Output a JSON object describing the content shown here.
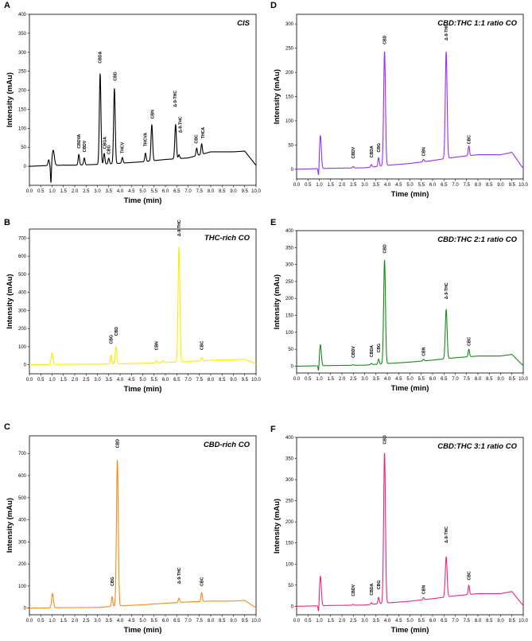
{
  "chart_data": [
    {
      "panel": "A",
      "title": "CIS",
      "type": "line",
      "color": "#000000",
      "xlabel": "Time (min)",
      "ylabel": "Intensity (mAu)",
      "xlim": [
        0,
        10
      ],
      "ylim": [
        -50,
        400
      ],
      "xticks": [
        "0.0",
        "0.5",
        "1.0",
        "1.5",
        "2.0",
        "2.5",
        "3.0",
        "3.5",
        "4.0",
        "4.5",
        "5.0",
        "5.5",
        "6.0",
        "6.5",
        "7.0",
        "7.5",
        "8.0",
        "8.5",
        "9.0",
        "9.5",
        "10.0"
      ],
      "yticks": [
        "0",
        "50",
        "100",
        "150",
        "200",
        "250",
        "300",
        "350",
        "400"
      ],
      "baseline": [
        [
          0,
          0
        ],
        [
          0.8,
          2
        ],
        [
          1.5,
          3
        ],
        [
          2,
          3
        ],
        [
          3,
          5
        ],
        [
          4,
          8
        ],
        [
          5,
          12
        ],
        [
          6,
          18
        ],
        [
          7,
          22
        ],
        [
          8,
          38
        ],
        [
          8.5,
          38
        ],
        [
          9,
          38
        ],
        [
          9.5,
          40
        ],
        [
          9.9,
          10
        ],
        [
          10,
          2
        ]
      ],
      "peaks": [
        {
          "label": "",
          "x": 0.85,
          "h": 15,
          "w": 0.03
        },
        {
          "label": "",
          "x": 0.95,
          "h": -50,
          "w": 0.02
        },
        {
          "label": "",
          "x": 1.05,
          "h": 40,
          "w": 0.05
        },
        {
          "label": "CBDVA",
          "x": 2.18,
          "h": 28,
          "w": 0.03
        },
        {
          "label": "CBDV",
          "x": 2.42,
          "h": 18,
          "w": 0.03
        },
        {
          "label": "CBDA",
          "x": 3.12,
          "h": 238,
          "w": 0.035
        },
        {
          "label": "CBGA",
          "x": 3.3,
          "h": 28,
          "w": 0.03
        },
        {
          "label": "CBG",
          "x": 3.5,
          "h": 15,
          "w": 0.03
        },
        {
          "label": "CBD",
          "x": 3.75,
          "h": 197,
          "w": 0.035
        },
        {
          "label": "THCV",
          "x": 4.1,
          "h": 15,
          "w": 0.03
        },
        {
          "label": "THCVA",
          "x": 5.12,
          "h": 22,
          "w": 0.03
        },
        {
          "label": "CBN",
          "x": 5.4,
          "h": 95,
          "w": 0.035
        },
        {
          "label": "Δ-9-THC",
          "x": 6.45,
          "h": 90,
          "w": 0.035
        },
        {
          "label": "Δ-8-THC",
          "x": 6.6,
          "h": 10,
          "w": 0.03
        },
        {
          "label": "CBC",
          "x": 7.38,
          "h": 20,
          "w": 0.03
        },
        {
          "label": "THCA",
          "x": 7.6,
          "h": 28,
          "w": 0.03
        }
      ],
      "labels": [
        {
          "label": "CBDVA",
          "x": 2.18,
          "y": 47
        },
        {
          "label": "CBDV",
          "x": 2.42,
          "y": 37
        },
        {
          "label": "CBDA",
          "x": 3.12,
          "y": 271
        },
        {
          "label": "CBGA",
          "x": 3.32,
          "y": 46
        },
        {
          "label": "CBG",
          "x": 3.5,
          "y": 32
        },
        {
          "label": "CBD",
          "x": 3.77,
          "y": 225
        },
        {
          "label": "THCV",
          "x": 4.1,
          "y": 34
        },
        {
          "label": "THCVA",
          "x": 5.12,
          "y": 52
        },
        {
          "label": "CBN",
          "x": 5.42,
          "y": 125
        },
        {
          "label": "Δ-9-THC",
          "x": 6.42,
          "y": 156
        },
        {
          "label": "Δ-8-THC",
          "x": 6.65,
          "y": 88
        },
        {
          "label": "CBC",
          "x": 7.35,
          "y": 60
        },
        {
          "label": "THCA",
          "x": 7.65,
          "y": 73
        }
      ]
    },
    {
      "panel": "B",
      "title": "THC-rich CO",
      "type": "line",
      "color": "#ffea00",
      "xlabel": "Time (min)",
      "ylabel": "Intensity (mAu)",
      "xlim": [
        0,
        10
      ],
      "ylim": [
        -50,
        750
      ],
      "xticks": [
        "0.0",
        "0.5",
        "1.0",
        "1.5",
        "2.0",
        "2.5",
        "3.0",
        "3.5",
        "4.0",
        "4.5",
        "5.0",
        "5.5",
        "6.0",
        "6.5",
        "7.0",
        "7.5",
        "8.0",
        "8.5",
        "9.0",
        "9.5",
        "10.0"
      ],
      "yticks": [
        "0",
        "100",
        "200",
        "300",
        "400",
        "500",
        "600",
        "700"
      ],
      "baseline": [
        [
          0,
          0
        ],
        [
          1.5,
          2
        ],
        [
          3,
          3
        ],
        [
          4,
          5
        ],
        [
          5,
          8
        ],
        [
          6,
          12
        ],
        [
          7,
          18
        ],
        [
          8,
          25
        ],
        [
          9,
          28
        ],
        [
          9.5,
          30
        ],
        [
          9.9,
          10
        ],
        [
          10,
          3
        ]
      ],
      "peaks": [
        {
          "label": "",
          "x": 1.0,
          "h": 65,
          "w": 0.04
        },
        {
          "label": "CBG",
          "x": 3.6,
          "h": 50,
          "w": 0.03
        },
        {
          "label": "CBD",
          "x": 3.82,
          "h": 95,
          "w": 0.035
        },
        {
          "label": "CBN",
          "x": 5.6,
          "h": 12,
          "w": 0.03
        },
        {
          "label": "",
          "x": 5.9,
          "h": 10,
          "w": 0.04
        },
        {
          "label": "Δ-9-THC",
          "x": 6.6,
          "h": 635,
          "w": 0.04
        },
        {
          "label": "CBC",
          "x": 7.6,
          "h": 18,
          "w": 0.03
        }
      ],
      "labels": [
        {
          "label": "CBG",
          "x": 3.6,
          "y": 115
        },
        {
          "label": "CBD",
          "x": 3.84,
          "y": 160
        },
        {
          "label": "CBN",
          "x": 5.6,
          "y": 80
        },
        {
          "label": "Δ-9-THC",
          "x": 6.6,
          "y": 710
        },
        {
          "label": "CBC",
          "x": 7.6,
          "y": 82
        }
      ]
    },
    {
      "panel": "C",
      "title": "CBD-rich CO",
      "type": "line",
      "color": "#f28c1a",
      "xlabel": "Time (min)",
      "ylabel": "Intensity (mAu)",
      "xlim": [
        0,
        10
      ],
      "ylim": [
        -30,
        780
      ],
      "xticks": [
        "0.0",
        "0.5",
        "1.0",
        "1.5",
        "2.0",
        "2.5",
        "3.0",
        "3.5",
        "4.0",
        "4.5",
        "5.0",
        "5.5",
        "6.0",
        "6.5",
        "7.0",
        "7.5",
        "8.0",
        "8.5",
        "9.0",
        "9.5",
        "10.0"
      ],
      "yticks": [
        "0",
        "100",
        "200",
        "300",
        "400",
        "500",
        "600",
        "700"
      ],
      "baseline": [
        [
          0,
          0
        ],
        [
          1.5,
          2
        ],
        [
          3,
          3
        ],
        [
          4,
          10
        ],
        [
          5,
          15
        ],
        [
          6,
          22
        ],
        [
          7,
          28
        ],
        [
          8,
          32
        ],
        [
          9,
          32
        ],
        [
          9.5,
          35
        ],
        [
          9.9,
          8
        ],
        [
          10,
          2
        ]
      ],
      "peaks": [
        {
          "label": "",
          "x": 1.02,
          "h": 65,
          "w": 0.04
        },
        {
          "label": "CBG",
          "x": 3.65,
          "h": 45,
          "w": 0.03
        },
        {
          "label": "CBD",
          "x": 3.88,
          "h": 660,
          "w": 0.04
        },
        {
          "label": "Δ-9-THC",
          "x": 6.6,
          "h": 20,
          "w": 0.03
        },
        {
          "label": "CBC",
          "x": 7.6,
          "h": 40,
          "w": 0.03
        }
      ],
      "labels": [
        {
          "label": "CBG",
          "x": 3.65,
          "y": 100
        },
        {
          "label": "CBD",
          "x": 3.88,
          "y": 725
        },
        {
          "label": "Δ-9-THC",
          "x": 6.6,
          "y": 110
        },
        {
          "label": "CBC",
          "x": 7.6,
          "y": 100
        }
      ]
    },
    {
      "panel": "D",
      "title": "CBD:THC 1:1 ratio CO",
      "type": "line",
      "color": "#9b30e8",
      "xlabel": "Time (min)",
      "ylabel": "Intensity (mAu)",
      "xlim": [
        0,
        10
      ],
      "ylim": [
        -20,
        320
      ],
      "xticks": [
        "0.0",
        "0.5",
        "1.0",
        "1.5",
        "2.0",
        "2.5",
        "3.0",
        "3.5",
        "4.0",
        "4.5",
        "5.0",
        "5.5",
        "6.0",
        "6.5",
        "7.0",
        "7.5",
        "8.0",
        "8.5",
        "9.0",
        "9.5",
        "10.0"
      ],
      "yticks": [
        "0",
        "50",
        "100",
        "150",
        "200",
        "250",
        "300"
      ],
      "baseline": [
        [
          0,
          0
        ],
        [
          1.5,
          2
        ],
        [
          3,
          3
        ],
        [
          4,
          8
        ],
        [
          5,
          12
        ],
        [
          6,
          18
        ],
        [
          7,
          25
        ],
        [
          8,
          30
        ],
        [
          9,
          30
        ],
        [
          9.5,
          35
        ],
        [
          9.9,
          8
        ],
        [
          10,
          2
        ]
      ],
      "peaks": [
        {
          "label": "",
          "x": 0.97,
          "h": -20,
          "w": 0.02
        },
        {
          "label": "",
          "x": 1.05,
          "h": 68,
          "w": 0.04
        },
        {
          "label": "CBDV",
          "x": 2.5,
          "h": 3,
          "w": 0.03
        },
        {
          "label": "CBDA",
          "x": 3.3,
          "h": 5,
          "w": 0.03
        },
        {
          "label": "CBG",
          "x": 3.62,
          "h": 18,
          "w": 0.03
        },
        {
          "label": "CBD",
          "x": 3.88,
          "h": 235,
          "w": 0.04
        },
        {
          "label": "CBN",
          "x": 5.6,
          "h": 5,
          "w": 0.03
        },
        {
          "label": "Δ-9-THC",
          "x": 6.6,
          "h": 220,
          "w": 0.04
        },
        {
          "label": "CBC",
          "x": 7.6,
          "h": 20,
          "w": 0.03
        }
      ],
      "labels": [
        {
          "label": "CBDV",
          "x": 2.5,
          "y": 22
        },
        {
          "label": "CBDA",
          "x": 3.3,
          "y": 24
        },
        {
          "label": "CBG",
          "x": 3.62,
          "y": 35
        },
        {
          "label": "CBD",
          "x": 3.88,
          "y": 258
        },
        {
          "label": "CBN",
          "x": 5.6,
          "y": 27
        },
        {
          "label": "Δ-9-THC",
          "x": 6.6,
          "y": 266
        },
        {
          "label": "CBC",
          "x": 7.6,
          "y": 52
        }
      ]
    },
    {
      "panel": "E",
      "title": "CBD:THC 2:1 ratio CO",
      "type": "line",
      "color": "#1a8a1a",
      "xlabel": "Time (min)",
      "ylabel": "Intensity (mAu)",
      "xlim": [
        0,
        10
      ],
      "ylim": [
        -20,
        400
      ],
      "xticks": [
        "0.0",
        "0.5",
        "1.0",
        "1.5",
        "2.0",
        "2.5",
        "3.0",
        "3.5",
        "4.0",
        "4.5",
        "5.0",
        "5.5",
        "6.0",
        "6.5",
        "7.0",
        "7.5",
        "8.0",
        "8.5",
        "9.0",
        "9.5",
        "10.0"
      ],
      "yticks": [
        "0",
        "50",
        "100",
        "150",
        "200",
        "250",
        "300",
        "350",
        "400"
      ],
      "baseline": [
        [
          0,
          0
        ],
        [
          1.5,
          2
        ],
        [
          3,
          3
        ],
        [
          4,
          8
        ],
        [
          5,
          12
        ],
        [
          6,
          18
        ],
        [
          7,
          25
        ],
        [
          8,
          30
        ],
        [
          9,
          30
        ],
        [
          9.5,
          35
        ],
        [
          9.9,
          8
        ],
        [
          10,
          2
        ]
      ],
      "peaks": [
        {
          "label": "",
          "x": 0.97,
          "h": -20,
          "w": 0.02
        },
        {
          "label": "",
          "x": 1.05,
          "h": 62,
          "w": 0.04
        },
        {
          "label": "CBDV",
          "x": 2.5,
          "h": 2,
          "w": 0.03
        },
        {
          "label": "CBDA",
          "x": 3.3,
          "h": 4,
          "w": 0.03
        },
        {
          "label": "CBG",
          "x": 3.62,
          "h": 15,
          "w": 0.03
        },
        {
          "label": "CBD",
          "x": 3.88,
          "h": 305,
          "w": 0.04
        },
        {
          "label": "CBN",
          "x": 5.6,
          "h": 5,
          "w": 0.03
        },
        {
          "label": "Δ-9-THC",
          "x": 6.6,
          "h": 145,
          "w": 0.04
        },
        {
          "label": "CBC",
          "x": 7.6,
          "h": 22,
          "w": 0.03
        }
      ],
      "labels": [
        {
          "label": "CBDV",
          "x": 2.5,
          "y": 25
        },
        {
          "label": "CBDA",
          "x": 3.3,
          "y": 27
        },
        {
          "label": "CBG",
          "x": 3.62,
          "y": 40
        },
        {
          "label": "CBD",
          "x": 3.88,
          "y": 333
        },
        {
          "label": "CBN",
          "x": 5.6,
          "y": 30
        },
        {
          "label": "Δ-9-THC",
          "x": 6.6,
          "y": 198
        },
        {
          "label": "CBC",
          "x": 7.6,
          "y": 60
        }
      ]
    },
    {
      "panel": "F",
      "title": "CBD:THC 3:1 ratio CO",
      "type": "line",
      "color": "#e8287a",
      "xlabel": "Time (min)",
      "ylabel": "Intensity (mAu)",
      "xlim": [
        0,
        10
      ],
      "ylim": [
        -20,
        400
      ],
      "xticks": [
        "0.0",
        "0.5",
        "1.0",
        "1.5",
        "2.0",
        "2.5",
        "3.0",
        "3.5",
        "4.0",
        "4.5",
        "5.0",
        "5.5",
        "6.0",
        "6.5",
        "7.0",
        "7.5",
        "8.0",
        "8.5",
        "9.0",
        "9.5",
        "10.0"
      ],
      "yticks": [
        "0",
        "50",
        "100",
        "150",
        "200",
        "250",
        "300",
        "350",
        "400"
      ],
      "baseline": [
        [
          0,
          0
        ],
        [
          1.5,
          2
        ],
        [
          3,
          3
        ],
        [
          4,
          8
        ],
        [
          5,
          12
        ],
        [
          6,
          18
        ],
        [
          7,
          25
        ],
        [
          8,
          30
        ],
        [
          9,
          30
        ],
        [
          9.5,
          35
        ],
        [
          9.9,
          8
        ],
        [
          10,
          2
        ]
      ],
      "peaks": [
        {
          "label": "",
          "x": 0.97,
          "h": -20,
          "w": 0.02
        },
        {
          "label": "",
          "x": 1.05,
          "h": 70,
          "w": 0.04
        },
        {
          "label": "CBDV",
          "x": 2.5,
          "h": 2,
          "w": 0.03
        },
        {
          "label": "CBDA",
          "x": 3.3,
          "h": 4,
          "w": 0.03
        },
        {
          "label": "CBG",
          "x": 3.62,
          "h": 15,
          "w": 0.03
        },
        {
          "label": "CBD",
          "x": 3.88,
          "h": 355,
          "w": 0.04
        },
        {
          "label": "CBN",
          "x": 5.6,
          "h": 5,
          "w": 0.03
        },
        {
          "label": "Δ-9-THC",
          "x": 6.6,
          "h": 95,
          "w": 0.04
        },
        {
          "label": "CBC",
          "x": 7.6,
          "h": 22,
          "w": 0.03
        }
      ],
      "labels": [
        {
          "label": "CBDV",
          "x": 2.5,
          "y": 24
        },
        {
          "label": "CBDA",
          "x": 3.3,
          "y": 26
        },
        {
          "label": "CBG",
          "x": 3.62,
          "y": 40
        },
        {
          "label": "CBD",
          "x": 3.88,
          "y": 384
        },
        {
          "label": "CBN",
          "x": 5.6,
          "y": 29
        },
        {
          "label": "Δ-9-THC",
          "x": 6.6,
          "y": 150
        },
        {
          "label": "CBC",
          "x": 7.6,
          "y": 62
        }
      ]
    }
  ]
}
